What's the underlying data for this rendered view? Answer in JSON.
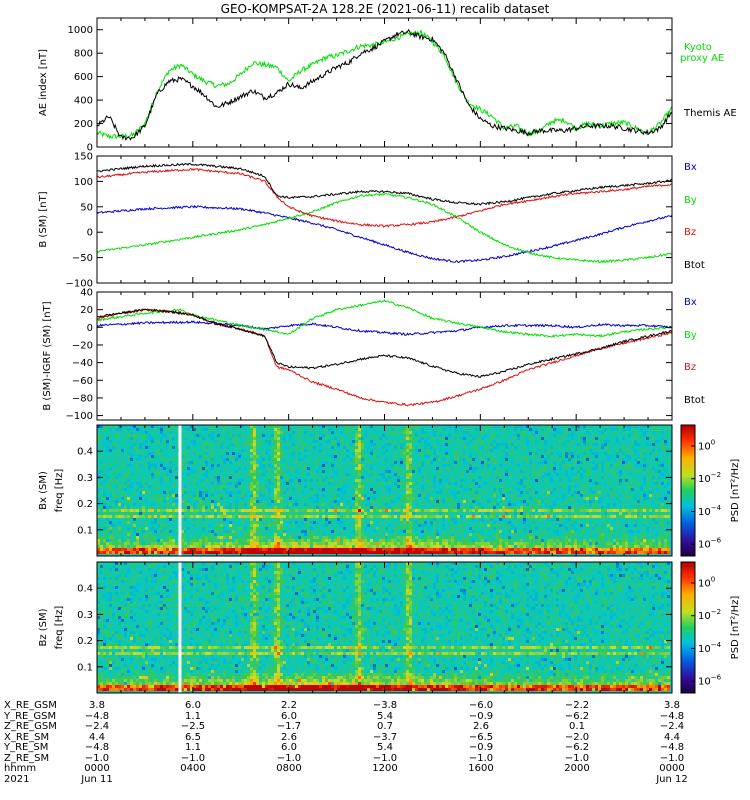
{
  "title": "GEO-KOMPSAT-2A 128.2E (2021-06-11) recalib dataset",
  "colors": {
    "black": "#000000",
    "green": "#00e000",
    "red": "#dd1111",
    "blue": "#0000cc"
  },
  "chart_data": [
    {
      "id": "ae",
      "type": "line",
      "ylabel": "AE index [nT]",
      "ylim": [
        0,
        1100
      ],
      "yticks": [
        0,
        200,
        400,
        600,
        800,
        1000
      ],
      "xlim": [
        0,
        24
      ],
      "series": [
        {
          "name": "Kyoto proxy AE",
          "color": "#00e000",
          "x": [
            0,
            0.5,
            1,
            1.5,
            2,
            2.5,
            3,
            3.5,
            4,
            4.5,
            5,
            5.5,
            6,
            6.5,
            7,
            7.5,
            8,
            8.5,
            9,
            9.5,
            10,
            10.5,
            11,
            11.5,
            12,
            12.5,
            13,
            13.5,
            14,
            14.5,
            15,
            15.5,
            16,
            16.5,
            17,
            17.5,
            18,
            18.5,
            19,
            19.5,
            20,
            20.5,
            21,
            21.5,
            22,
            22.5,
            23,
            23.5,
            24
          ],
          "y": [
            120,
            90,
            90,
            100,
            200,
            470,
            650,
            700,
            620,
            560,
            520,
            540,
            620,
            720,
            700,
            680,
            560,
            650,
            700,
            760,
            780,
            820,
            860,
            870,
            890,
            930,
            960,
            980,
            900,
            780,
            550,
            380,
            320,
            260,
            160,
            180,
            110,
            140,
            220,
            230,
            160,
            200,
            180,
            200,
            210,
            160,
            120,
            200,
            330
          ]
        },
        {
          "name": "Themis AE",
          "color": "#000000",
          "x": [
            0,
            0.5,
            1,
            1.5,
            2,
            2.5,
            3,
            3.5,
            4,
            4.5,
            5,
            5.5,
            6,
            6.5,
            7,
            7.5,
            8,
            8.5,
            9,
            9.5,
            10,
            10.5,
            11,
            11.5,
            12,
            12.5,
            13,
            13.5,
            14,
            14.5,
            15,
            15.5,
            16,
            16.5,
            17,
            17.5,
            18,
            18.5,
            19,
            19.5,
            20,
            20.5,
            21,
            21.5,
            22,
            22.5,
            23,
            23.5,
            24
          ],
          "y": [
            180,
            260,
            80,
            80,
            180,
            450,
            560,
            580,
            520,
            440,
            340,
            380,
            430,
            480,
            420,
            460,
            540,
            500,
            560,
            620,
            680,
            720,
            800,
            840,
            900,
            960,
            980,
            940,
            920,
            800,
            580,
            360,
            240,
            180,
            160,
            140,
            120,
            140,
            140,
            140,
            160,
            180,
            180,
            180,
            160,
            140,
            120,
            160,
            300
          ]
        }
      ]
    },
    {
      "id": "bsm",
      "type": "line",
      "ylabel": "B (SM) [nT]",
      "ylim": [
        -100,
        150
      ],
      "yticks": [
        -100,
        -50,
        0,
        50,
        100,
        150
      ],
      "xlim": [
        0,
        24
      ],
      "series": [
        {
          "name": "Bx",
          "color": "#0000cc",
          "x": [
            0,
            2,
            4,
            6,
            7,
            8,
            9,
            10,
            11,
            12,
            13,
            14,
            15,
            16,
            17,
            18,
            19,
            20,
            21,
            22,
            23,
            24
          ],
          "y": [
            38,
            46,
            50,
            46,
            38,
            28,
            18,
            5,
            -10,
            -25,
            -40,
            -52,
            -58,
            -55,
            -48,
            -38,
            -28,
            -16,
            -4,
            10,
            22,
            32
          ]
        },
        {
          "name": "By",
          "color": "#00e000",
          "x": [
            0,
            2,
            4,
            6,
            7,
            8,
            9,
            10,
            11,
            12,
            13,
            14,
            15,
            16,
            17,
            18,
            19,
            20,
            21,
            22,
            23,
            24
          ],
          "y": [
            -38,
            -25,
            -10,
            5,
            15,
            28,
            40,
            58,
            72,
            75,
            68,
            55,
            30,
            0,
            -25,
            -40,
            -50,
            -55,
            -58,
            -55,
            -50,
            -42
          ]
        },
        {
          "name": "Bz",
          "color": "#dd1111",
          "x": [
            0,
            2,
            4,
            6,
            7,
            7.5,
            8,
            8.5,
            9,
            10,
            11,
            12,
            13,
            14,
            15,
            16,
            17,
            18,
            19,
            20,
            21,
            22,
            23,
            24
          ],
          "y": [
            108,
            118,
            124,
            115,
            100,
            70,
            50,
            40,
            32,
            22,
            15,
            12,
            15,
            20,
            30,
            42,
            55,
            62,
            70,
            76,
            80,
            84,
            90,
            94
          ]
        },
        {
          "name": "Btot",
          "color": "#000000",
          "x": [
            0,
            2,
            4,
            6,
            7,
            7.5,
            8,
            9,
            10,
            11,
            12,
            13,
            14,
            15,
            16,
            17,
            18,
            19,
            20,
            21,
            22,
            23,
            24
          ],
          "y": [
            120,
            130,
            134,
            125,
            110,
            72,
            68,
            70,
            75,
            80,
            80,
            76,
            65,
            58,
            55,
            60,
            68,
            76,
            82,
            88,
            92,
            96,
            102
          ]
        }
      ]
    },
    {
      "id": "bdiff",
      "type": "line",
      "ylabel": "B (SM)-IGRF (SM) [nT]",
      "ylim": [
        -105,
        40
      ],
      "yticks": [
        -100,
        -80,
        -60,
        -40,
        -20,
        0,
        20,
        40
      ],
      "xlim": [
        0,
        24
      ],
      "series": [
        {
          "name": "Bx",
          "color": "#0000cc",
          "x": [
            0,
            2,
            4,
            6,
            7,
            8,
            9,
            10,
            11,
            12,
            13,
            14,
            15,
            16,
            17,
            18,
            19,
            20,
            21,
            22,
            23,
            24
          ],
          "y": [
            2,
            5,
            6,
            2,
            -2,
            2,
            4,
            0,
            -4,
            -6,
            -8,
            -6,
            -4,
            0,
            2,
            2,
            2,
            0,
            3,
            2,
            2,
            0
          ]
        },
        {
          "name": "By",
          "color": "#00e000",
          "x": [
            0,
            2,
            3.5,
            4,
            6,
            7,
            8,
            9,
            10,
            11,
            12,
            13,
            14,
            15,
            16,
            17,
            18,
            19,
            20,
            21,
            22,
            23,
            24
          ],
          "y": [
            8,
            16,
            20,
            14,
            2,
            -2,
            -8,
            10,
            20,
            25,
            30,
            22,
            10,
            5,
            0,
            -5,
            -8,
            -10,
            -8,
            -10,
            -5,
            -2,
            0
          ]
        },
        {
          "name": "Bz",
          "color": "#dd1111",
          "x": [
            0,
            1,
            2,
            3,
            4,
            5,
            6,
            7,
            7.5,
            8,
            8.5,
            9,
            10,
            11,
            12,
            13,
            14,
            15,
            16,
            17,
            18,
            19,
            20,
            21,
            22,
            23,
            24
          ],
          "y": [
            10,
            16,
            20,
            18,
            14,
            4,
            -2,
            -10,
            -45,
            -48,
            -55,
            -62,
            -70,
            -80,
            -85,
            -88,
            -85,
            -78,
            -70,
            -60,
            -48,
            -40,
            -32,
            -24,
            -18,
            -12,
            -6
          ]
        },
        {
          "name": "Btot",
          "color": "#000000",
          "x": [
            0,
            1,
            2,
            3,
            4,
            5,
            6,
            7,
            7.5,
            8,
            9,
            10,
            11,
            12,
            13,
            14,
            15,
            16,
            17,
            18,
            19,
            20,
            21,
            22,
            23,
            24
          ],
          "y": [
            12,
            16,
            20,
            18,
            14,
            4,
            -2,
            -10,
            -40,
            -45,
            -46,
            -42,
            -36,
            -32,
            -35,
            -44,
            -52,
            -56,
            -50,
            -42,
            -36,
            -30,
            -24,
            -16,
            -10,
            -4
          ]
        }
      ]
    },
    {
      "id": "bx_spec",
      "type": "heatmap",
      "ylabel": "Bx (SM) freq [Hz]",
      "ylim": [
        0,
        0.5
      ],
      "yticks": [
        0.1,
        0.2,
        0.3,
        0.4
      ],
      "colorbar_label": "PSD [nT²/Hz]",
      "colorbar_ticks": [
        "10^0",
        "10^-2",
        "10^-4",
        "10^-6"
      ],
      "data_gap_hour": 3.4,
      "bright_bands_hour": [
        6.5,
        7.5,
        10.9,
        13.0
      ],
      "line_freq_hz": [
        0.14,
        0.17
      ]
    },
    {
      "id": "bz_spec",
      "type": "heatmap",
      "ylabel": "Bz (SM) freq [Hz]",
      "ylim": [
        0,
        0.5
      ],
      "yticks": [
        0.1,
        0.2,
        0.3,
        0.4
      ],
      "colorbar_label": "PSD [nT²/Hz]",
      "colorbar_ticks": [
        "10^0",
        "10^-2",
        "10^-4",
        "10^-6"
      ],
      "data_gap_hour": 3.4,
      "bright_bands_hour": [
        6.5,
        7.5,
        10.9,
        13.0
      ],
      "line_freq_hz": [
        0.14,
        0.17
      ]
    }
  ],
  "panel_legends": {
    "ae": [
      "Kyoto proxy AE",
      "Themis AE"
    ],
    "bsm": [
      "Bx",
      "By",
      "Bz",
      "Btot"
    ],
    "bdiff": [
      "Bx",
      "By",
      "Bz",
      "Btot"
    ]
  },
  "ephemeris": {
    "rows": [
      {
        "label": "X_RE_GSM",
        "values": [
          "3.8",
          "6.0",
          "2.2",
          "-3.8",
          "-6.0",
          "-2.2",
          "3.8"
        ]
      },
      {
        "label": "Y_RE_GSM",
        "values": [
          "-4.8",
          "1.1",
          "6.0",
          "5.4",
          "-0.9",
          "-6.2",
          "-4.8"
        ]
      },
      {
        "label": "Z_RE_GSM",
        "values": [
          "-2.4",
          "-2.5",
          "-1.7",
          "0.7",
          "2.6",
          "0.1",
          "-2.4"
        ]
      },
      {
        "label": "X_RE_SM",
        "values": [
          "4.4",
          "6.5",
          "2.6",
          "-3.7",
          "-6.5",
          "-2.0",
          "4.4"
        ]
      },
      {
        "label": "Y_RE_SM",
        "values": [
          "-4.8",
          "1.1",
          "6.0",
          "5.4",
          "-0.9",
          "-6.2",
          "-4.8"
        ]
      },
      {
        "label": "Z_RE_SM",
        "values": [
          "-1.0",
          "-1.0",
          "-1.0",
          "-1.0",
          "-1.0",
          "-1.0",
          "-1.0"
        ]
      },
      {
        "label": "hhmm",
        "values": [
          "0000",
          "0400",
          "0800",
          "1200",
          "1600",
          "2000",
          "0000"
        ]
      },
      {
        "label": "2021",
        "values": [
          "Jun 11",
          "",
          "",
          "",
          "",
          "",
          "Jun 12"
        ]
      }
    ]
  }
}
